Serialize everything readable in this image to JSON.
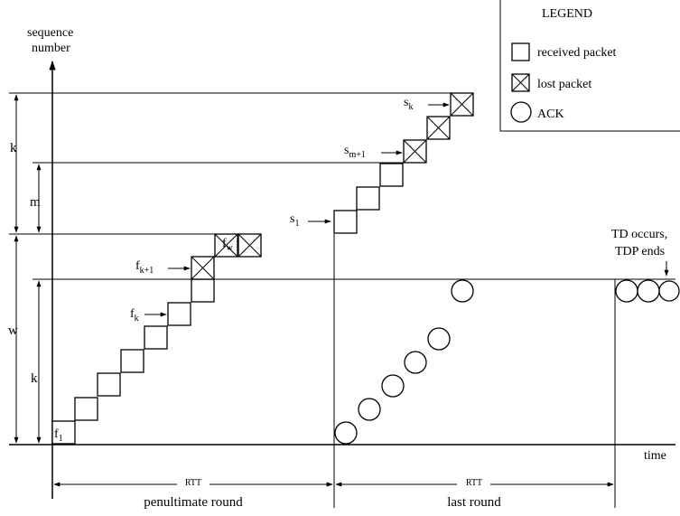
{
  "axes": {
    "y_label_line1": "sequence",
    "y_label_line2": "number",
    "x_label": "time"
  },
  "legend": {
    "title": "LEGEND",
    "received": "received packet",
    "lost": "lost packet",
    "ack": "ACK"
  },
  "left_labels": {
    "k_top": "k",
    "m": "m",
    "w": "w",
    "k_bottom": "k"
  },
  "packet_labels": {
    "f1_base": "f",
    "f1_sub": "1",
    "fk_base": "f",
    "fk_sub": "k",
    "fk1_base": "f",
    "fk1_sub": "k+1",
    "fw_base": "f",
    "fw_sub": "w",
    "s1_base": "s",
    "s1_sub": "1",
    "sm1_base": "s",
    "sm1_sub": "m+1",
    "sk_base": "s",
    "sk_sub": "k"
  },
  "td": {
    "line1": "TD occurs,",
    "line2": "TDP ends"
  },
  "rounds": {
    "rtt1": "RTT",
    "penultimate": "penultimate round",
    "rtt2": "RTT",
    "last": "last round"
  },
  "diagram_data": {
    "penultimate_round_received": 6,
    "penultimate_round_lost": 3,
    "last_round_received": 3,
    "last_round_lost": 3,
    "last_round_acks": 6,
    "td_acks": 3
  }
}
